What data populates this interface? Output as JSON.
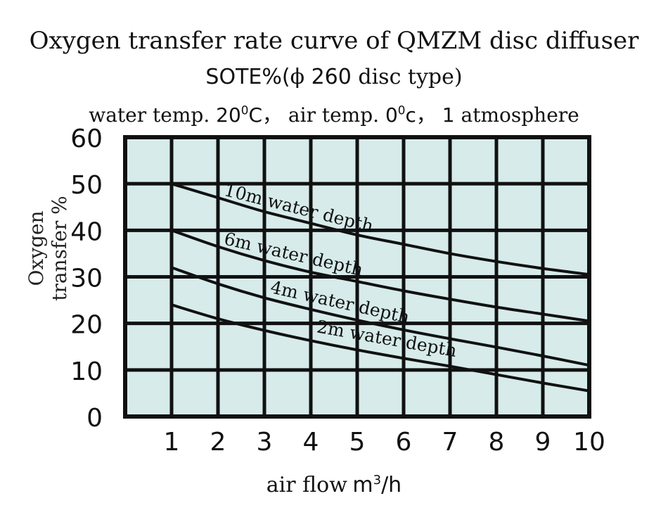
{
  "chart_data": {
    "type": "line",
    "title": "Oxygen transfer rate curve of QMZM disc diffuser",
    "subtitle": {
      "lead": "SOTE%(",
      "phi": "ϕ",
      "num": "260",
      "text": "disc type)"
    },
    "conditions": {
      "a": "water temp.",
      "b": "20",
      "b_sup": "0",
      "c": "C，",
      "d": "air temp.",
      "e": "0",
      "e_sup": "0",
      "f": "c，",
      "g": "1",
      "h": "atmosphere"
    },
    "xlabel": {
      "text": "air flow",
      "unit": "m",
      "unit_sup": "3",
      "unit_tail": "/h"
    },
    "ylabel": "Oxygen transfer %",
    "xlim": [
      0,
      10
    ],
    "ylim": [
      0,
      60
    ],
    "x_ticks": [
      "1",
      "2",
      "3",
      "4",
      "5",
      "6",
      "7",
      "8",
      "9",
      "10"
    ],
    "y_ticks": [
      "0",
      "10",
      "20",
      "30",
      "40",
      "50",
      "60"
    ],
    "grid": true,
    "background": "#d6ebea",
    "line_color": "#111111",
    "series": [
      {
        "name": "10m water depth",
        "x": [
          1,
          2,
          3,
          4,
          5,
          6,
          7,
          8,
          9,
          10
        ],
        "values": [
          50,
          47,
          44,
          41.5,
          39,
          37,
          35,
          33.3,
          31.8,
          30.5
        ]
      },
      {
        "name": "6m water depth",
        "x": [
          1,
          2,
          3,
          4,
          5,
          6,
          7,
          8,
          9,
          10
        ],
        "values": [
          40,
          36.5,
          33.5,
          31,
          29,
          27,
          25.2,
          23.5,
          22,
          20.5
        ]
      },
      {
        "name": "4m water depth",
        "x": [
          1,
          2,
          3,
          4,
          5,
          6,
          7,
          8,
          9,
          10
        ],
        "values": [
          32,
          28.5,
          25.5,
          23,
          20.7,
          18.6,
          16.7,
          14.9,
          13,
          11
        ]
      },
      {
        "name": "2m water depth",
        "x": [
          1,
          2,
          3,
          4,
          5,
          6,
          7,
          8,
          9,
          10
        ],
        "values": [
          24,
          21,
          18.5,
          16.3,
          14.3,
          12.5,
          10.8,
          9,
          7.2,
          5.5
        ]
      }
    ]
  }
}
